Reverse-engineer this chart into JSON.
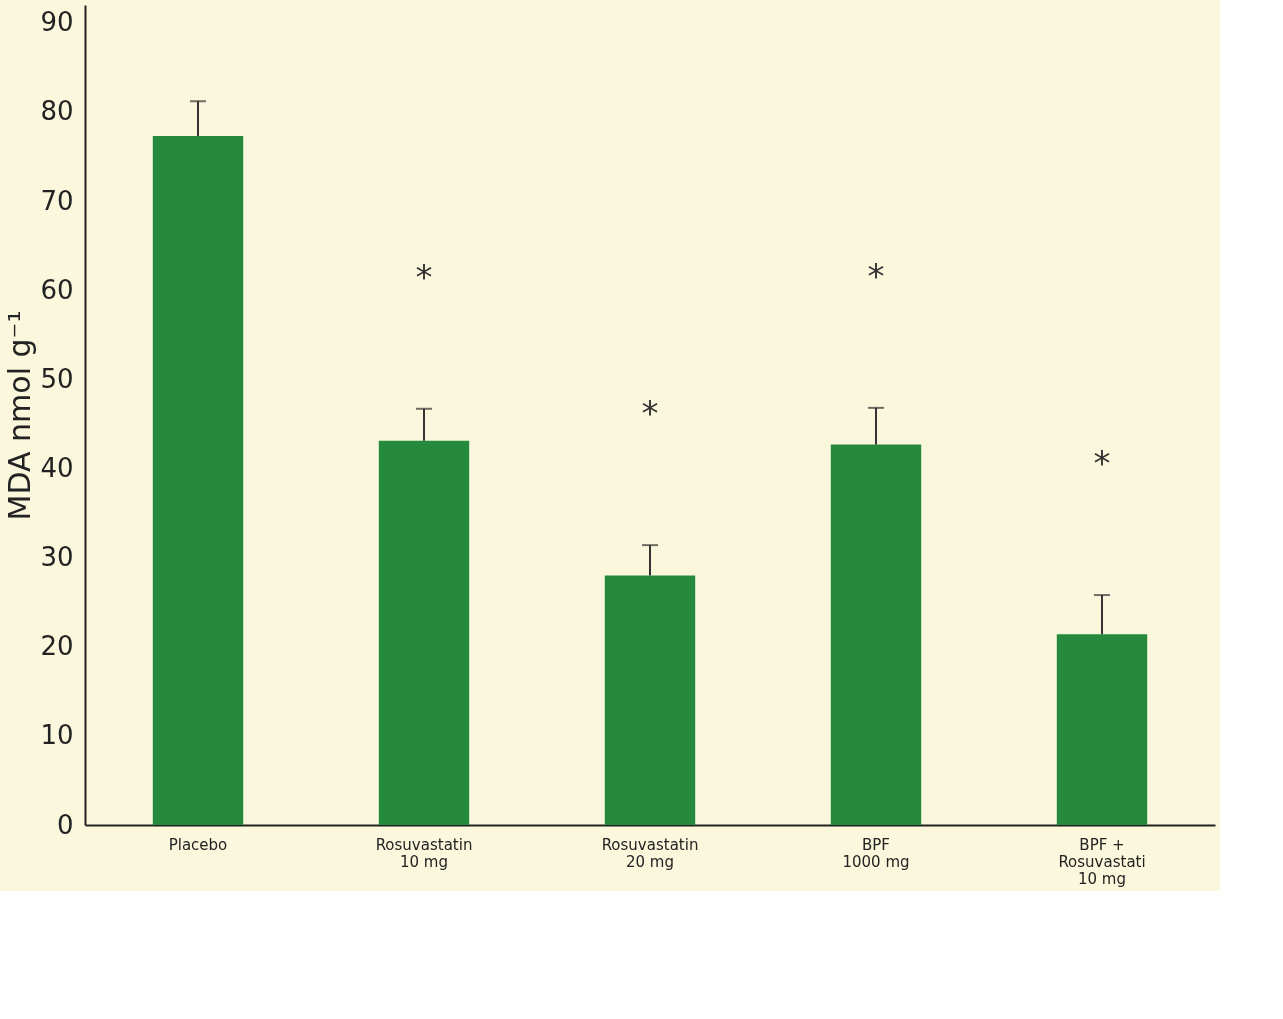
{
  "chart_data": {
    "type": "bar",
    "ylabel": "MDA nmol g⁻¹",
    "categories": [
      "Placebo",
      "Rosuvastatin\n\n10 mg",
      "Rosuvastatin\n\n20 mg",
      "BPF\n\n1000 mg",
      "BPF +\nRosuvastati\n10 mg"
    ],
    "values": [
      77.3,
      43.1,
      28.0,
      42.7,
      21.4
    ],
    "errors": [
      [
        77.3,
        81.2
      ],
      [
        43.1,
        46.7
      ],
      [
        28.0,
        31.4
      ],
      [
        42.7,
        46.8
      ],
      [
        21.4,
        25.8
      ]
    ],
    "color": "#268a3c",
    "ylim": [
      0,
      92
    ],
    "yticks": [
      0,
      10,
      20,
      30,
      40,
      50,
      60,
      70,
      80,
      90
    ],
    "grid": false,
    "annotations": [
      "*",
      "*",
      "*",
      "*"
    ]
  }
}
